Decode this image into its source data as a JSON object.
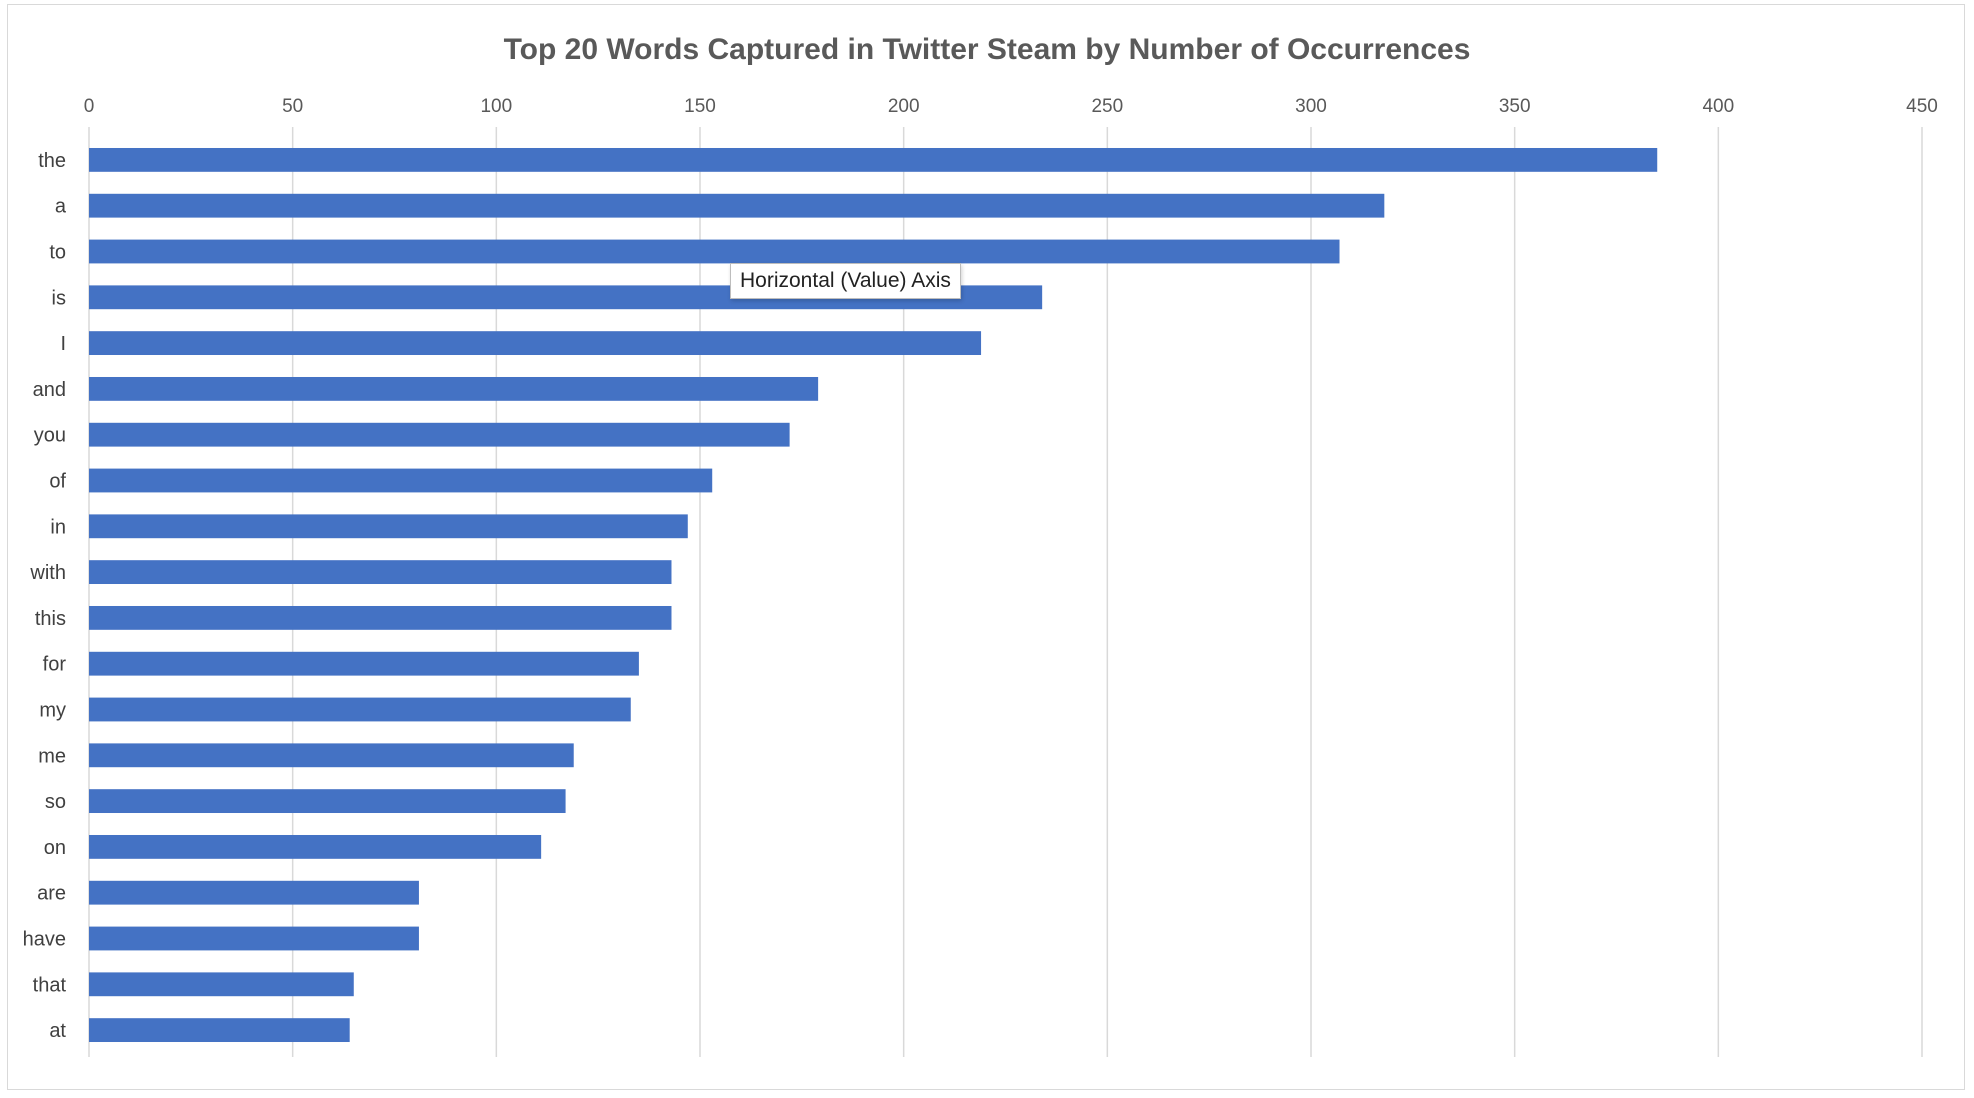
{
  "chart_data": {
    "type": "bar",
    "orientation": "horizontal",
    "title": "Top 20 Words Captured in Twitter Steam by Number of Occurrences",
    "xlabel": "",
    "ylabel": "",
    "xlim": [
      0,
      450
    ],
    "x_ticks": [
      0,
      50,
      100,
      150,
      200,
      250,
      300,
      350,
      400,
      450
    ],
    "x_axis_position": "top",
    "grid": true,
    "legend": "none",
    "bar_color": "#4472c4",
    "categories": [
      "the",
      "a",
      "to",
      "is",
      "I",
      "and",
      "you",
      "of",
      "in",
      "with",
      "this",
      "for",
      "my",
      "me",
      "so",
      "on",
      "are",
      "have",
      "that",
      "at"
    ],
    "values": [
      385,
      318,
      307,
      234,
      219,
      179,
      172,
      153,
      147,
      143,
      143,
      135,
      133,
      119,
      117,
      111,
      81,
      81,
      65,
      64
    ]
  },
  "tooltip": {
    "text": "Horizontal (Value) Axis"
  }
}
